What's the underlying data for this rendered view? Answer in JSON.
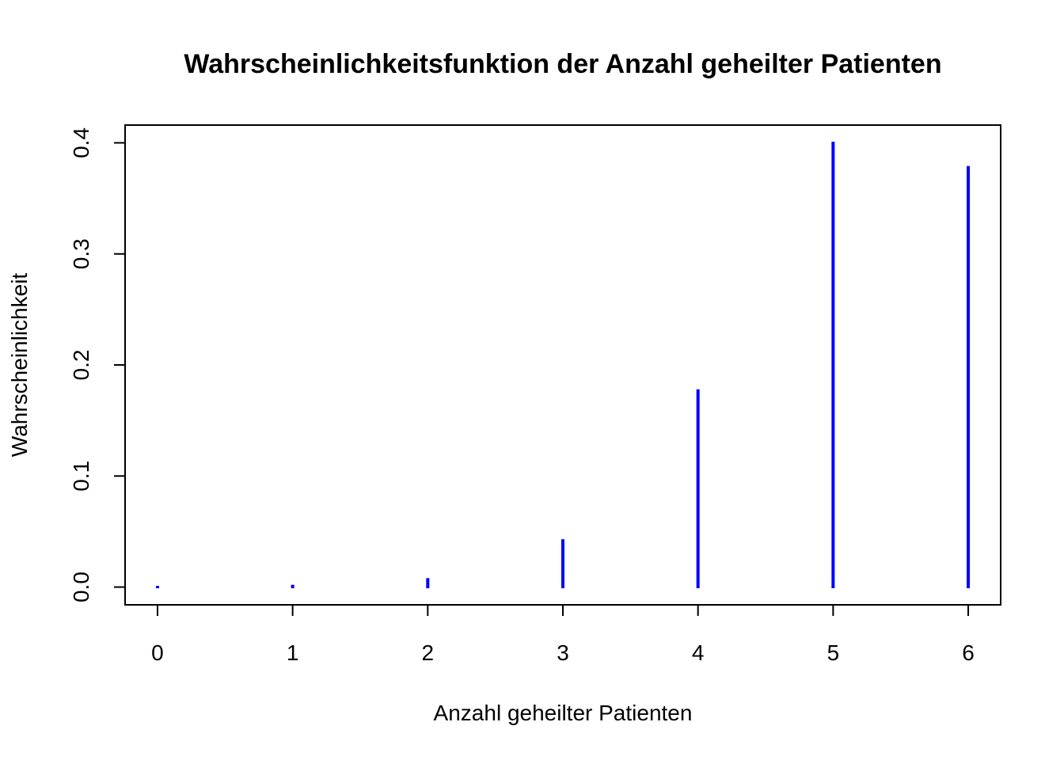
{
  "chart_data": {
    "type": "bar",
    "title": "Wahrscheinlichkeitsfunktion der Anzahl geheilter Patienten",
    "xlabel": "Anzahl geheilter Patienten",
    "ylabel": "Wahrscheinlichkeit",
    "x": [
      0,
      1,
      2,
      3,
      4,
      5,
      6
    ],
    "values": [
      0.0,
      0.001,
      0.007,
      0.042,
      0.177,
      0.4,
      0.378
    ],
    "x_ticks": [
      "0",
      "1",
      "2",
      "3",
      "4",
      "5",
      "6"
    ],
    "y_ticks": [
      "0.0",
      "0.1",
      "0.2",
      "0.3",
      "0.4"
    ],
    "xlim": [
      -0.24,
      6.24
    ],
    "ylim": [
      -0.016,
      0.416
    ],
    "bar_color": "#0000ff",
    "grid": false,
    "legend": "none"
  }
}
